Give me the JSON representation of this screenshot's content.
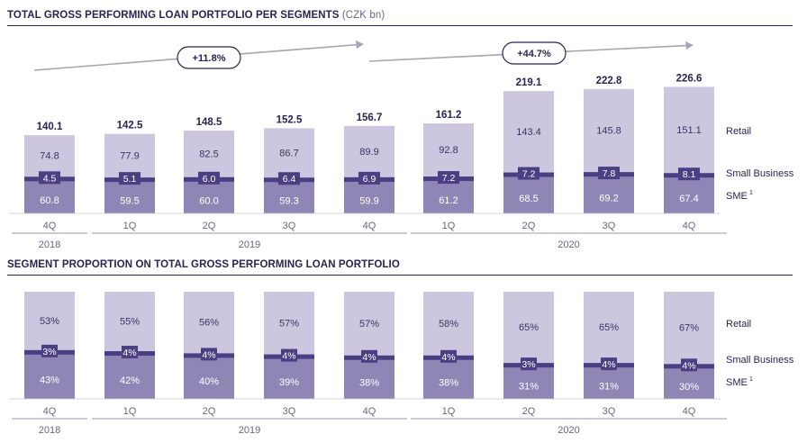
{
  "chart_data": [
    {
      "type": "bar",
      "stacked": true,
      "title": "TOTAL GROSS PERFORMING LOAN PORTFOLIO PER SEGMENTS",
      "unit": "(CZK bn)",
      "categories": [
        "4Q",
        "1Q",
        "2Q",
        "3Q",
        "4Q",
        "1Q",
        "2Q",
        "3Q",
        "4Q"
      ],
      "year_groups": [
        {
          "label": "2018",
          "start": 0,
          "end": 0
        },
        {
          "label": "2019",
          "start": 1,
          "end": 4
        },
        {
          "label": "2020",
          "start": 5,
          "end": 8
        }
      ],
      "series": [
        {
          "name": "SME",
          "values": [
            60.8,
            59.5,
            60.0,
            59.3,
            59.9,
            61.2,
            68.5,
            69.2,
            67.4
          ]
        },
        {
          "name": "Small Business",
          "values": [
            4.5,
            5.1,
            6.0,
            6.4,
            6.9,
            7.2,
            7.2,
            7.8,
            8.1
          ]
        },
        {
          "name": "Retail",
          "values": [
            74.8,
            77.9,
            82.5,
            86.7,
            89.9,
            92.8,
            143.4,
            145.8,
            151.1
          ]
        }
      ],
      "totals": [
        "140.1",
        "142.5",
        "148.5",
        "152.5",
        "156.7",
        "161.2",
        "219.1",
        "222.8",
        "226.6"
      ],
      "growth": [
        {
          "label": "+11.8%",
          "from": 0,
          "to": 4
        },
        {
          "label": "+44.7%",
          "from": 4,
          "to": 8
        }
      ],
      "colors": {
        "SME": "#8f86b6",
        "Small Business": "#4a3f82",
        "Retail": "#ccc7df"
      }
    },
    {
      "type": "bar",
      "stacked": true,
      "title": "SEGMENT PROPORTION ON TOTAL GROSS PERFORMING LOAN PORTFOLIO",
      "categories": [
        "4Q",
        "1Q",
        "2Q",
        "3Q",
        "4Q",
        "1Q",
        "2Q",
        "3Q",
        "4Q"
      ],
      "year_groups": [
        {
          "label": "2018",
          "start": 0,
          "end": 0
        },
        {
          "label": "2019",
          "start": 1,
          "end": 4
        },
        {
          "label": "2020",
          "start": 5,
          "end": 8
        }
      ],
      "series": [
        {
          "name": "SME",
          "values": [
            43,
            42,
            40,
            39,
            38,
            38,
            31,
            31,
            30
          ],
          "labels": [
            "43%",
            "42%",
            "40%",
            "39%",
            "38%",
            "38%",
            "31%",
            "31%",
            "30%"
          ]
        },
        {
          "name": "Small Business",
          "values": [
            3,
            4,
            4,
            4,
            4,
            4,
            3,
            4,
            4
          ],
          "labels": [
            "3%",
            "4%",
            "4%",
            "4%",
            "4%",
            "4%",
            "3%",
            "4%",
            "4%"
          ]
        },
        {
          "name": "Retail",
          "values": [
            53,
            55,
            56,
            57,
            57,
            58,
            65,
            65,
            67
          ],
          "labels": [
            "53%",
            "55%",
            "56%",
            "57%",
            "57%",
            "58%",
            "65%",
            "65%",
            "67%"
          ]
        }
      ],
      "colors": {
        "SME": "#8f86b6",
        "Small Business": "#4a3f82",
        "Retail": "#ccc7df"
      }
    }
  ],
  "legend": {
    "retail": "Retail",
    "small_business": "Small Business",
    "sme": "SME",
    "sme_superscript": "1"
  }
}
